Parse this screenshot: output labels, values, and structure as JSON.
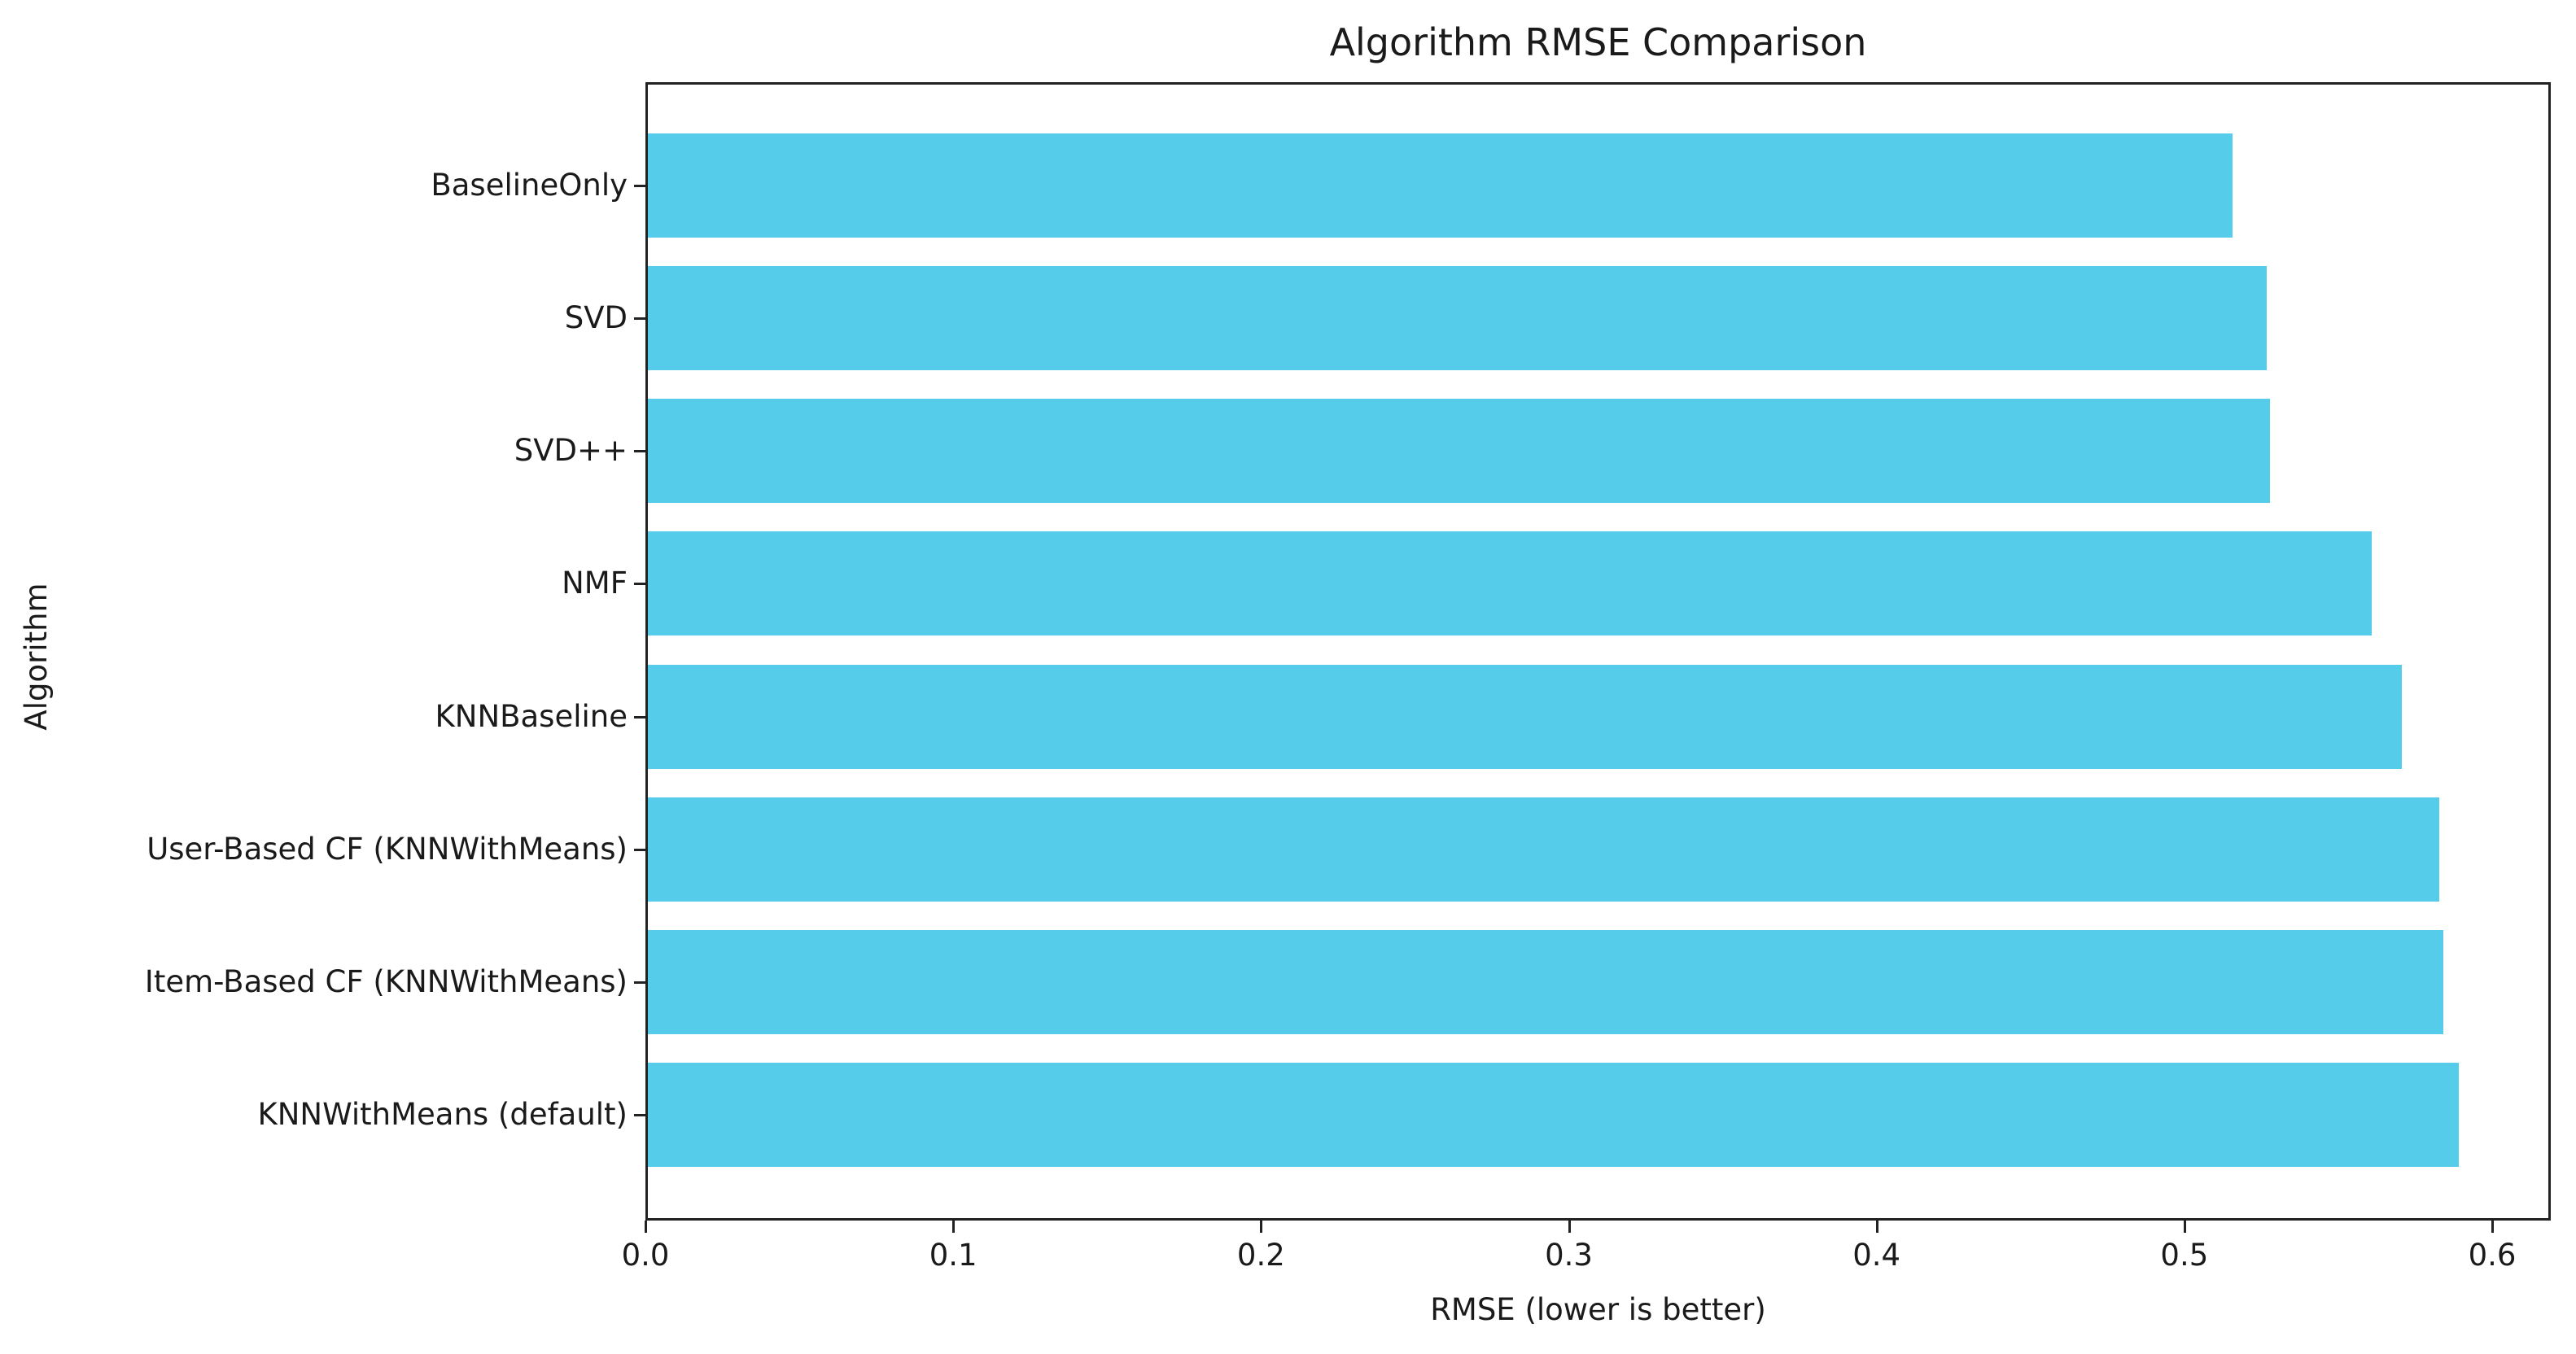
{
  "chart_data": {
    "type": "bar",
    "orientation": "horizontal",
    "title": "Algorithm RMSE Comparison",
    "xlabel": "RMSE (lower is better)",
    "ylabel": "Algorithm",
    "categories": [
      "BaselineOnly",
      "SVD",
      "SVD++",
      "NMF",
      "KNNBaseline",
      "User-Based CF (KNNWithMeans)",
      "Item-Based CF (KNNWithMeans)",
      "KNNWithMeans (default)"
    ],
    "values": [
      0.5156,
      0.5267,
      0.5278,
      0.5608,
      0.5706,
      0.5828,
      0.5841,
      0.5891
    ],
    "xlim": [
      0.0,
      0.619
    ],
    "xticks": [
      "0.0",
      "0.1",
      "0.2",
      "0.3",
      "0.4",
      "0.5",
      "0.6"
    ],
    "grid": false,
    "legend": null,
    "bar_color": "#56CCEB"
  }
}
